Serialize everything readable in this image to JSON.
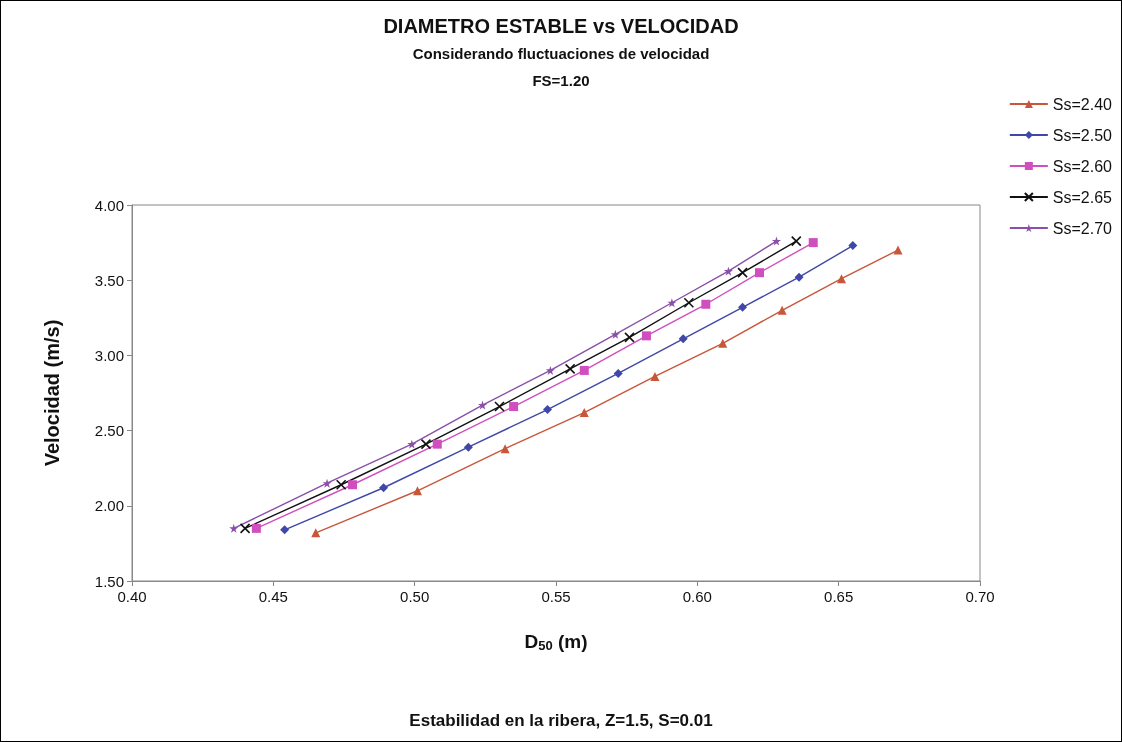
{
  "chart_data": {
    "type": "line",
    "title": "DIAMETRO ESTABLE vs VELOCIDAD",
    "subtitle": "Considerando fluctuaciones de velocidad",
    "xlabel": "D$_{50}$ (m)",
    "ylabel": "Velocidad (m/s)",
    "annotations": [
      "FS=1.20",
      "Estabilidad en la ribera, Z=1.5, S=0.01"
    ],
    "xlim": [
      0.4,
      0.7
    ],
    "xticks": [
      {
        "value": 0.4,
        "label": "0.40"
      },
      {
        "value": 0.45,
        "label": "0.45"
      },
      {
        "value": 0.5,
        "label": "0.50"
      },
      {
        "value": 0.55,
        "label": "0.55"
      },
      {
        "value": 0.6,
        "label": "0.60"
      },
      {
        "value": 0.65,
        "label": "0.65"
      },
      {
        "value": 0.7,
        "label": "0.70"
      }
    ],
    "ylim": [
      1.5,
      4.0
    ],
    "yticks": [
      {
        "value": 1.5,
        "label": "1.50"
      },
      {
        "value": 2.0,
        "label": "2.00"
      },
      {
        "value": 2.5,
        "label": "2.50"
      },
      {
        "value": 3.0,
        "label": "3.00"
      },
      {
        "value": 3.5,
        "label": "3.50"
      },
      {
        "value": 4.0,
        "label": "4.00"
      }
    ],
    "grid": false,
    "legend": "top right",
    "series": [
      {
        "name": "Ss=2.40",
        "color": "#c8573a",
        "marker": "triangle",
        "x": [
          0.465,
          0.501,
          0.532,
          0.56,
          0.585,
          0.609,
          0.63,
          0.651,
          0.671
        ],
        "values": [
          1.82,
          2.1,
          2.38,
          2.62,
          2.86,
          3.08,
          3.3,
          3.51,
          3.7
        ]
      },
      {
        "name": "Ss=2.50",
        "color": "#3f48a8",
        "marker": "diamond",
        "x": [
          0.454,
          0.489,
          0.519,
          0.547,
          0.572,
          0.595,
          0.616,
          0.636,
          0.655
        ],
        "values": [
          1.84,
          2.12,
          2.39,
          2.64,
          2.88,
          3.11,
          3.32,
          3.52,
          3.73
        ]
      },
      {
        "name": "Ss=2.60",
        "color": "#d04fbf",
        "marker": "square",
        "x": [
          0.444,
          0.478,
          0.508,
          0.535,
          0.56,
          0.582,
          0.603,
          0.622,
          0.641
        ],
        "values": [
          1.85,
          2.14,
          2.41,
          2.66,
          2.9,
          3.13,
          3.34,
          3.55,
          3.75
        ]
      },
      {
        "name": "Ss=2.65",
        "color": "#111111",
        "marker": "cross",
        "x": [
          0.44,
          0.474,
          0.504,
          0.53,
          0.555,
          0.576,
          0.597,
          0.616,
          0.635
        ],
        "values": [
          1.85,
          2.14,
          2.41,
          2.66,
          2.91,
          3.12,
          3.35,
          3.55,
          3.76
        ]
      },
      {
        "name": "Ss=2.70",
        "color": "#8a4fa8",
        "marker": "star",
        "x": [
          0.436,
          0.469,
          0.499,
          0.524,
          0.548,
          0.571,
          0.591,
          0.611,
          0.628
        ],
        "values": [
          1.85,
          2.15,
          2.41,
          2.67,
          2.9,
          3.14,
          3.35,
          3.56,
          3.76
        ]
      }
    ]
  }
}
